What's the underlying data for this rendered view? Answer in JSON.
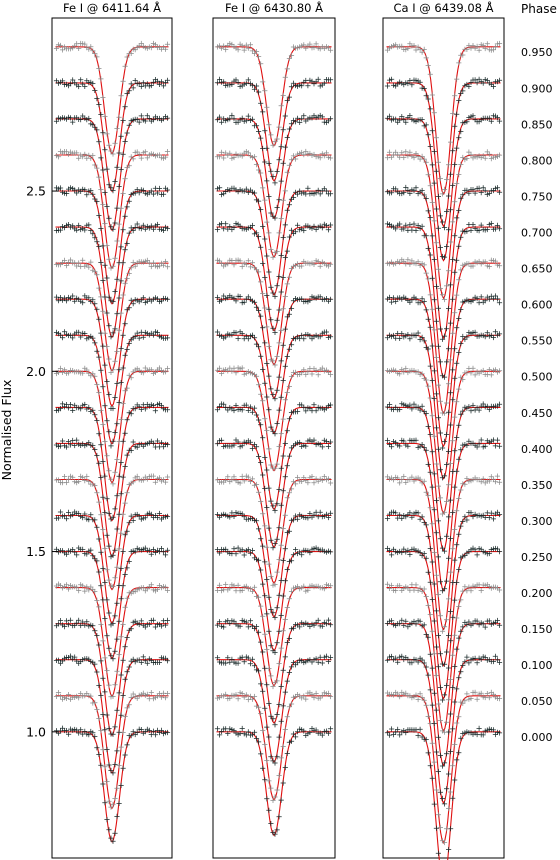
{
  "chart_data": {
    "type": "line",
    "ylabel": "Normalised Flux",
    "ylim": [
      0.65,
      2.98
    ],
    "yticks": [
      1.0,
      1.5,
      2.0,
      2.5
    ],
    "ytick_labels": [
      "1.0",
      "1.5",
      "2.0",
      "2.5"
    ],
    "phase_header": "Phase",
    "phases": [
      "0.000",
      "0.050",
      "0.100",
      "0.150",
      "0.200",
      "0.250",
      "0.300",
      "0.350",
      "0.400",
      "0.450",
      "0.500",
      "0.550",
      "0.600",
      "0.650",
      "0.700",
      "0.750",
      "0.800",
      "0.850",
      "0.900",
      "0.950"
    ],
    "continuum_levels": [
      1.0,
      1.1,
      1.2,
      1.3,
      1.4,
      1.5,
      1.6,
      1.7,
      1.8,
      1.9,
      2.0,
      2.1,
      2.2,
      2.3,
      2.4,
      2.5,
      2.6,
      2.7,
      2.8,
      2.9
    ],
    "colors": {
      "model": "#e01010",
      "observed_dark": "#1a2a2a",
      "observed_light": "#8a8a8a"
    },
    "panels": [
      {
        "title": "Fe I @ 6411.64 Å",
        "line_depth": 0.305
      },
      {
        "title": "Fe I @ 6430.80 Å",
        "line_depth": 0.28
      },
      {
        "title": "Ca I @ 6439.08 Å",
        "line_depth": 0.405
      }
    ]
  }
}
